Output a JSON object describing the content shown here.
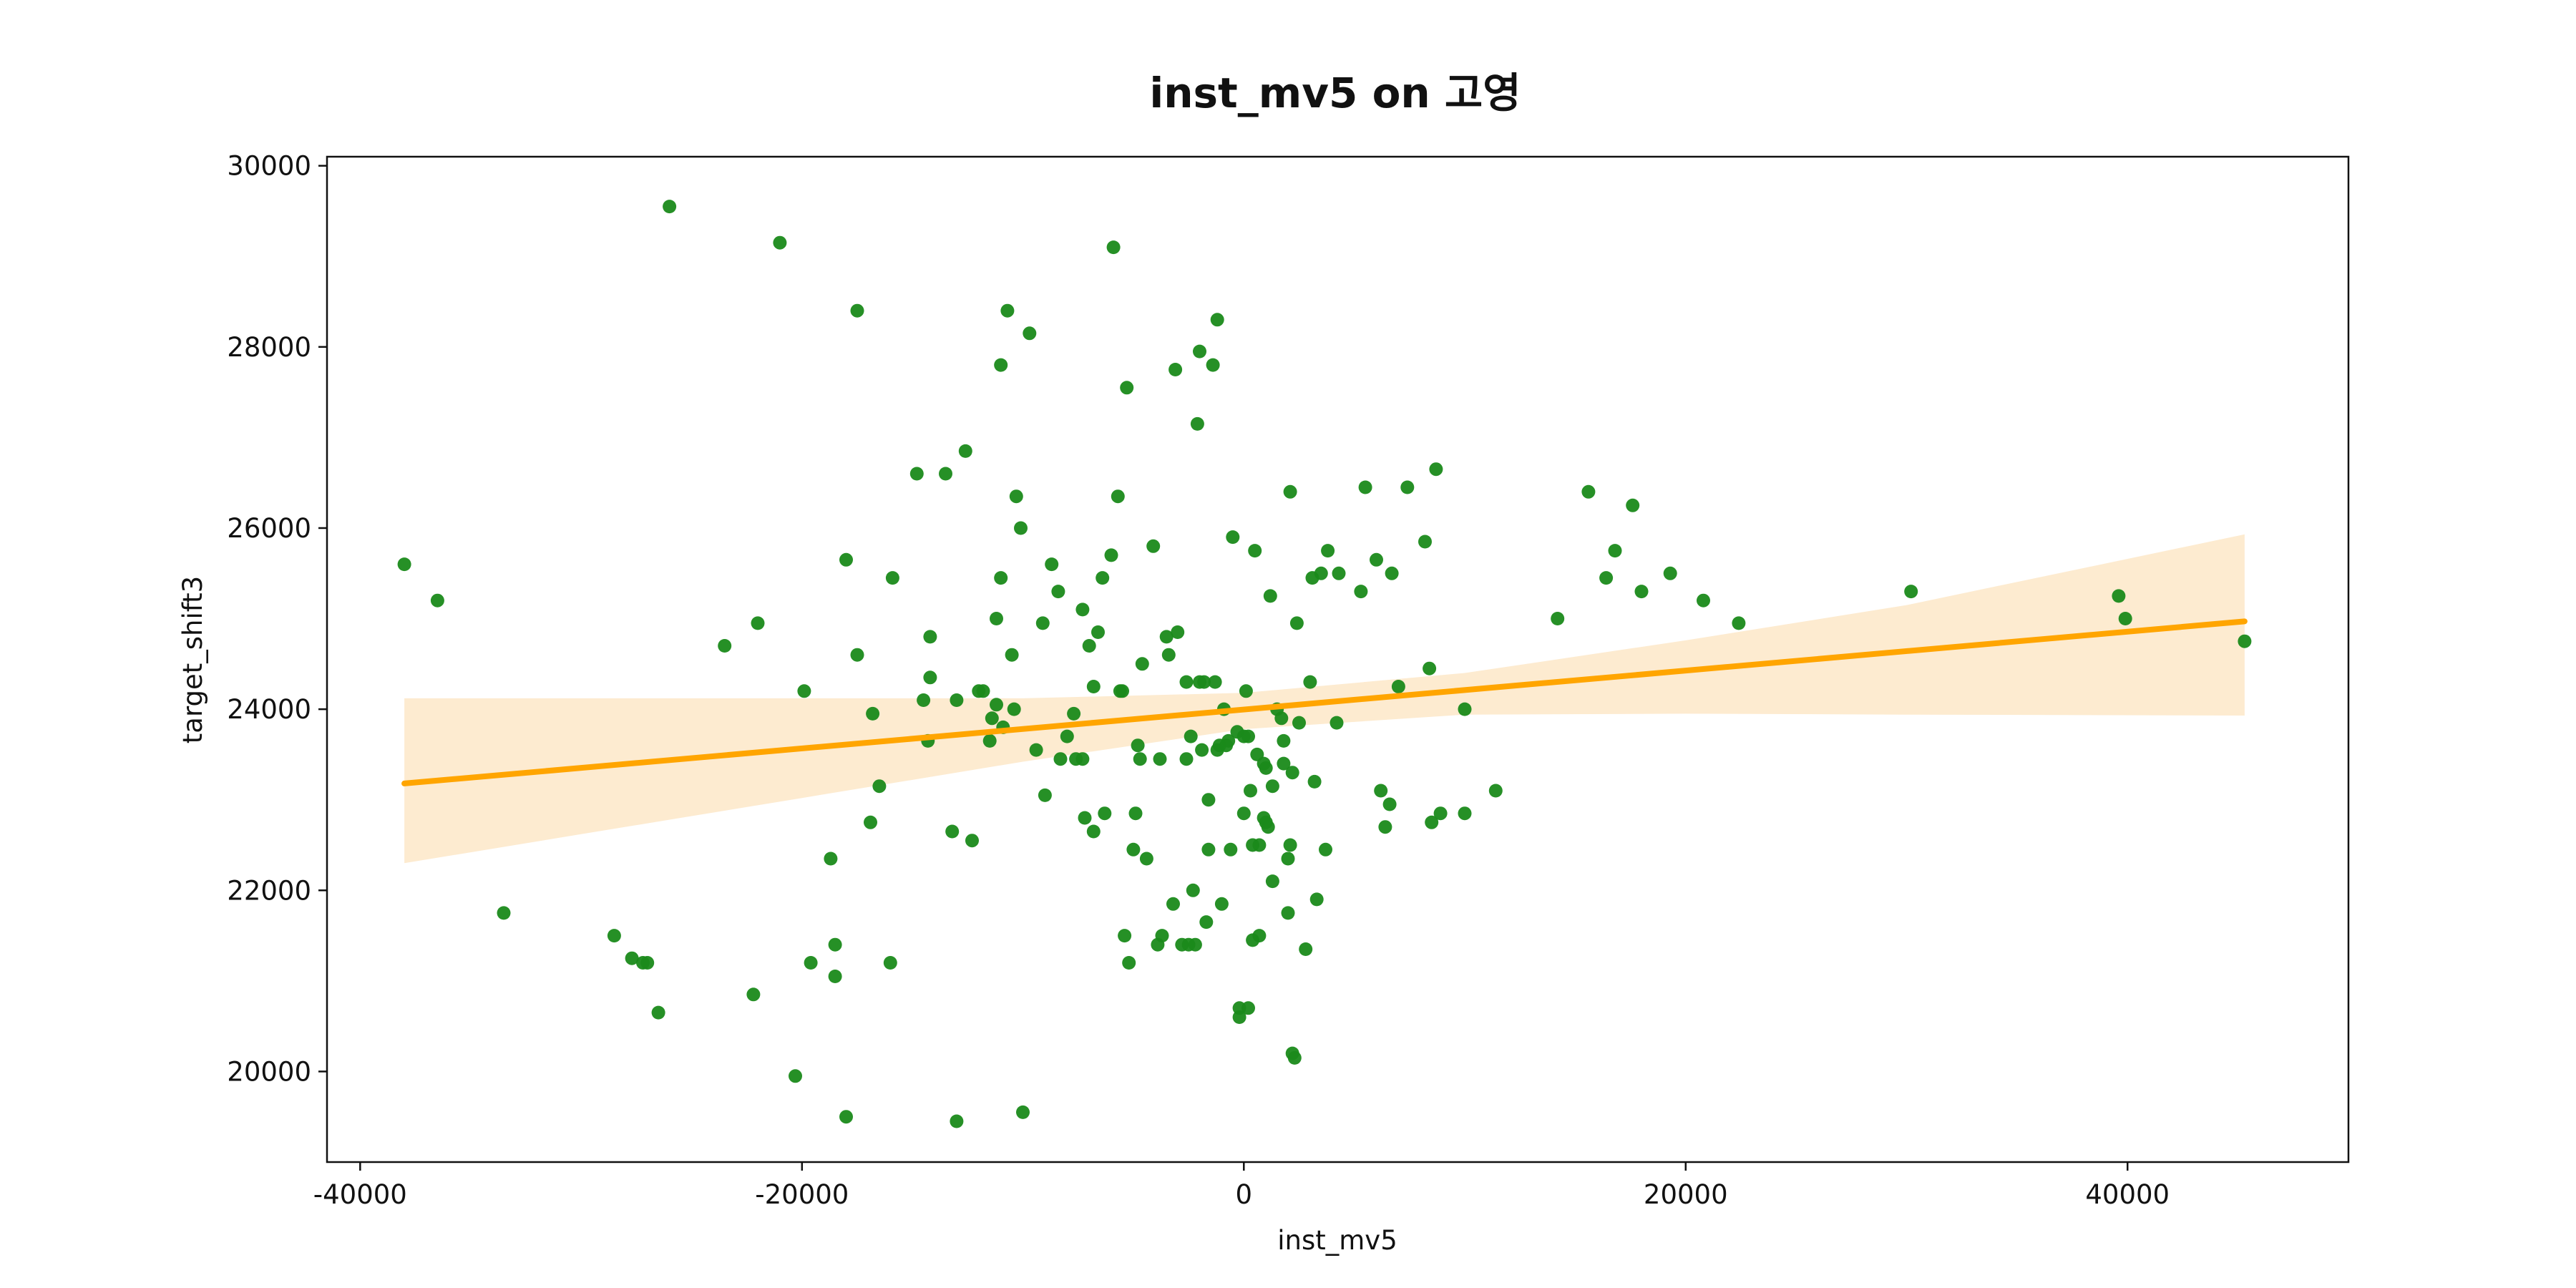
{
  "chart_data": {
    "type": "scatter",
    "title": "inst_mv5 on 고영",
    "xlabel": "inst_mv5",
    "ylabel": "target_shift3",
    "xlim": [
      -41500,
      50000
    ],
    "ylim": [
      19000,
      30100
    ],
    "x_ticks": [
      -40000,
      -20000,
      0,
      20000,
      40000
    ],
    "x_tick_labels": [
      "-40000",
      "-20000",
      "0",
      "20000",
      "40000"
    ],
    "y_ticks": [
      20000,
      22000,
      24000,
      26000,
      28000,
      30000
    ],
    "y_tick_labels": [
      "20000",
      "22000",
      "24000",
      "26000",
      "28000",
      "30000"
    ],
    "grid": false,
    "colors": {
      "points": "#1a8a1a",
      "fit_line": "#ffa500",
      "confidence_band": "#fdebd0"
    },
    "points": [
      [
        -38000,
        25600
      ],
      [
        -36500,
        25200
      ],
      [
        -33500,
        21750
      ],
      [
        -28500,
        21500
      ],
      [
        -27700,
        21250
      ],
      [
        -27200,
        21200
      ],
      [
        -27000,
        21200
      ],
      [
        -26500,
        20650
      ],
      [
        -26000,
        29550
      ],
      [
        -23500,
        24700
      ],
      [
        -22200,
        20850
      ],
      [
        -22000,
        24950
      ],
      [
        -21000,
        29150
      ],
      [
        -20300,
        19950
      ],
      [
        -19900,
        24200
      ],
      [
        -19600,
        21200
      ],
      [
        -18700,
        22350
      ],
      [
        -18500,
        21400
      ],
      [
        -18500,
        21050
      ],
      [
        -18000,
        19500
      ],
      [
        -18000,
        25650
      ],
      [
        -17500,
        28400
      ],
      [
        -17500,
        24600
      ],
      [
        -16900,
        22750
      ],
      [
        -16800,
        23950
      ],
      [
        -16500,
        23150
      ],
      [
        -16000,
        21200
      ],
      [
        -15900,
        25450
      ],
      [
        -14800,
        26600
      ],
      [
        -14500,
        24100
      ],
      [
        -14300,
        23650
      ],
      [
        -14200,
        24800
      ],
      [
        -14200,
        24350
      ],
      [
        -13500,
        26600
      ],
      [
        -13200,
        22650
      ],
      [
        -13000,
        24100
      ],
      [
        -13000,
        19450
      ],
      [
        -12600,
        26850
      ],
      [
        -12300,
        22550
      ],
      [
        -12000,
        24200
      ],
      [
        -11800,
        24200
      ],
      [
        -11500,
        23650
      ],
      [
        -11400,
        23900
      ],
      [
        -11200,
        25000
      ],
      [
        -11200,
        24050
      ],
      [
        -11000,
        25450
      ],
      [
        -11000,
        27800
      ],
      [
        -10900,
        23800
      ],
      [
        -10700,
        28400
      ],
      [
        -10500,
        24600
      ],
      [
        -10400,
        24000
      ],
      [
        -10300,
        26350
      ],
      [
        -10100,
        26000
      ],
      [
        -10000,
        19550
      ],
      [
        -9700,
        28150
      ],
      [
        -9400,
        23550
      ],
      [
        -9100,
        24950
      ],
      [
        -9000,
        23050
      ],
      [
        -8700,
        25600
      ],
      [
        -8400,
        25300
      ],
      [
        -8300,
        23450
      ],
      [
        -8000,
        23700
      ],
      [
        -7700,
        23950
      ],
      [
        -7600,
        23450
      ],
      [
        -7300,
        25100
      ],
      [
        -7300,
        23450
      ],
      [
        -7200,
        22800
      ],
      [
        -7000,
        24700
      ],
      [
        -6800,
        22650
      ],
      [
        -6800,
        24250
      ],
      [
        -6600,
        24850
      ],
      [
        -6400,
        25450
      ],
      [
        -6300,
        22850
      ],
      [
        -6000,
        25700
      ],
      [
        -5900,
        29100
      ],
      [
        -5700,
        26350
      ],
      [
        -5600,
        24200
      ],
      [
        -5500,
        24200
      ],
      [
        -5400,
        21500
      ],
      [
        -5300,
        27550
      ],
      [
        -5200,
        21200
      ],
      [
        -5000,
        22450
      ],
      [
        -4900,
        22850
      ],
      [
        -4800,
        23600
      ],
      [
        -4700,
        23450
      ],
      [
        -4600,
        24500
      ],
      [
        -4400,
        22350
      ],
      [
        -4100,
        25800
      ],
      [
        -3900,
        21400
      ],
      [
        -3800,
        23450
      ],
      [
        -3700,
        21500
      ],
      [
        -3500,
        24800
      ],
      [
        -3400,
        24600
      ],
      [
        -3200,
        21850
      ],
      [
        -3100,
        27750
      ],
      [
        -3000,
        24850
      ],
      [
        -2800,
        21400
      ],
      [
        -2600,
        24300
      ],
      [
        -2600,
        23450
      ],
      [
        -2500,
        21400
      ],
      [
        -2400,
        23700
      ],
      [
        -2300,
        22000
      ],
      [
        -2200,
        21400
      ],
      [
        -2100,
        27150
      ],
      [
        -2000,
        24300
      ],
      [
        -2000,
        27950
      ],
      [
        -1900,
        23550
      ],
      [
        -1800,
        24300
      ],
      [
        -1700,
        21650
      ],
      [
        -1600,
        22450
      ],
      [
        -1600,
        23000
      ],
      [
        -1400,
        27800
      ],
      [
        -1300,
        24300
      ],
      [
        -1200,
        28300
      ],
      [
        -1200,
        23550
      ],
      [
        -1100,
        23600
      ],
      [
        -1000,
        21850
      ],
      [
        -900,
        24000
      ],
      [
        -800,
        23600
      ],
      [
        -700,
        23650
      ],
      [
        -600,
        22450
      ],
      [
        -500,
        25900
      ],
      [
        -300,
        23750
      ],
      [
        -200,
        20700
      ],
      [
        -200,
        20600
      ],
      [
        0,
        22850
      ],
      [
        0,
        23700
      ],
      [
        100,
        24200
      ],
      [
        200,
        23700
      ],
      [
        200,
        20700
      ],
      [
        300,
        23100
      ],
      [
        400,
        22500
      ],
      [
        400,
        21450
      ],
      [
        500,
        25750
      ],
      [
        600,
        23500
      ],
      [
        700,
        21500
      ],
      [
        700,
        22500
      ],
      [
        900,
        23400
      ],
      [
        900,
        22800
      ],
      [
        1000,
        23350
      ],
      [
        1000,
        22750
      ],
      [
        1100,
        22700
      ],
      [
        1200,
        25250
      ],
      [
        1300,
        23150
      ],
      [
        1300,
        22100
      ],
      [
        1500,
        24000
      ],
      [
        1700,
        23900
      ],
      [
        1800,
        23650
      ],
      [
        1800,
        23400
      ],
      [
        2000,
        21750
      ],
      [
        2000,
        22350
      ],
      [
        2100,
        26400
      ],
      [
        2100,
        22500
      ],
      [
        2200,
        23300
      ],
      [
        2200,
        20200
      ],
      [
        2300,
        20150
      ],
      [
        2400,
        24950
      ],
      [
        2500,
        23850
      ],
      [
        2800,
        21350
      ],
      [
        3000,
        24300
      ],
      [
        3100,
        25450
      ],
      [
        3200,
        23200
      ],
      [
        3300,
        21900
      ],
      [
        3500,
        25500
      ],
      [
        3700,
        22450
      ],
      [
        3800,
        25750
      ],
      [
        4200,
        23850
      ],
      [
        4300,
        25500
      ],
      [
        5300,
        25300
      ],
      [
        5500,
        26450
      ],
      [
        6000,
        25650
      ],
      [
        6200,
        23100
      ],
      [
        6400,
        22700
      ],
      [
        6600,
        22950
      ],
      [
        6700,
        25500
      ],
      [
        7000,
        24250
      ],
      [
        7400,
        26450
      ],
      [
        8200,
        25850
      ],
      [
        8400,
        24450
      ],
      [
        8500,
        22750
      ],
      [
        8700,
        26650
      ],
      [
        8900,
        22850
      ],
      [
        10000,
        24000
      ],
      [
        10000,
        22850
      ],
      [
        11400,
        23100
      ],
      [
        14200,
        25000
      ],
      [
        15600,
        26400
      ],
      [
        16400,
        25450
      ],
      [
        16800,
        25750
      ],
      [
        17600,
        26250
      ],
      [
        18000,
        25300
      ],
      [
        19300,
        25500
      ],
      [
        20800,
        25200
      ],
      [
        22400,
        24950
      ],
      [
        30200,
        25300
      ],
      [
        39600,
        25250
      ],
      [
        39900,
        25000
      ],
      [
        45300,
        24750
      ]
    ],
    "regression": {
      "x_start": -38000,
      "y_start": 23180,
      "x_end": 45300,
      "y_end": 24970
    },
    "confidence_band": {
      "x": [
        -38000,
        -30000,
        -20000,
        -10000,
        0,
        10000,
        20000,
        30000,
        45300
      ],
      "lower": [
        22300,
        22620,
        23020,
        23420,
        23780,
        23940,
        23950,
        23940,
        23930
      ],
      "upper": [
        24120,
        24120,
        24120,
        24120,
        24180,
        24400,
        24760,
        25150,
        25930
      ]
    }
  }
}
